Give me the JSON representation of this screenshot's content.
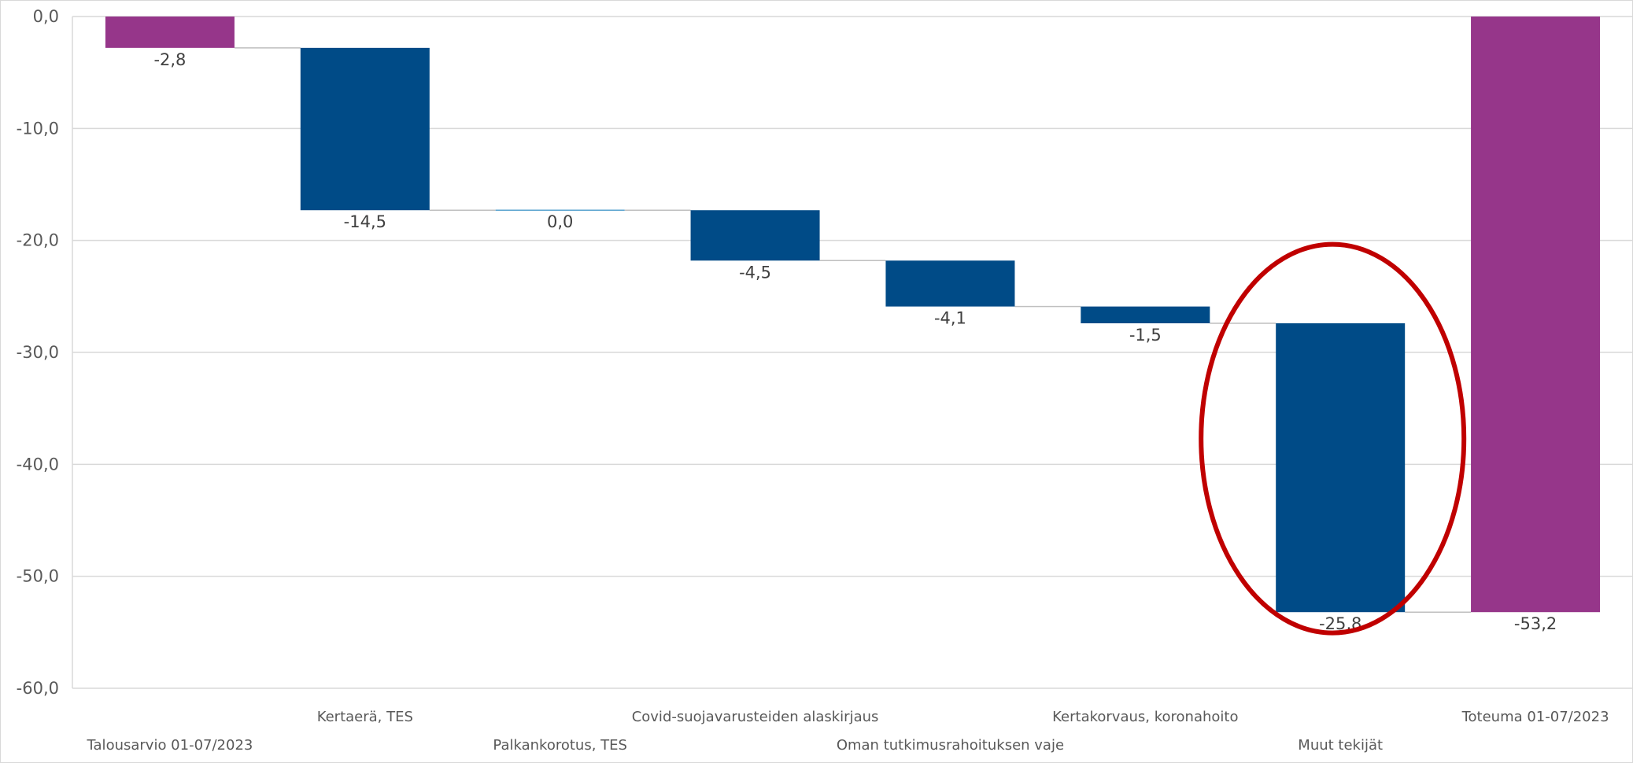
{
  "chart_data": {
    "type": "bar",
    "subtype": "waterfall",
    "categories": [
      "Talousarvio 01-07/2023",
      "Kertaerä, TES",
      "Palkankorotus, TES",
      "Covid-suojavarusteiden alaskirjaus",
      "Oman tutkimusrahoituksen vaje",
      "Kertakorvaus, koronahoito",
      "Muut tekijät",
      "Toteuma 01-07/2023"
    ],
    "values": [
      -2.8,
      -14.5,
      0.0,
      -4.5,
      -4.1,
      -1.5,
      -25.8,
      -53.2
    ],
    "bar_kind": [
      "total",
      "change",
      "change",
      "change",
      "change",
      "change",
      "change",
      "total"
    ],
    "data_labels": [
      "-2,8",
      "-14,5",
      "0,0",
      "-4,5",
      "-4,1",
      "-1,5",
      "-25,8",
      "-53,2"
    ],
    "ylim": [
      -60,
      0
    ],
    "yticks": [
      0,
      -10,
      -20,
      -30,
      -40,
      -50,
      -60
    ],
    "ytick_labels": [
      "0,0",
      "-10,0",
      "-20,0",
      "-30,0",
      "-40,0",
      "-50,0",
      "-60,0"
    ],
    "grid": true,
    "title": "",
    "xlabel": "",
    "ylabel": "",
    "colors": {
      "total": "#96368A",
      "change": "#004B87",
      "zero_change": "#5BA3D0",
      "connector": "#BFBFBF",
      "grid": "#D9D9D9",
      "highlight": "#C00000"
    },
    "annotation": {
      "shape": "ellipse",
      "target_category": "Muut tekijät"
    }
  }
}
